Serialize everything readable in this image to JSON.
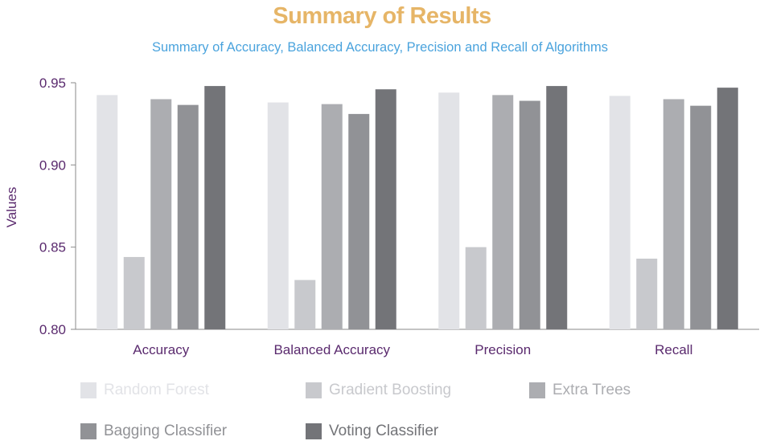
{
  "chart_data": {
    "type": "bar",
    "title": "Summary of Results",
    "subtitle": "Summary of Accuracy, Balanced Accuracy, Precision and Recall of Algorithms",
    "xlabel": "",
    "ylabel": "Values",
    "ylim": [
      0.8,
      0.95
    ],
    "yticks": [
      "0.80",
      "0.85",
      "0.90",
      "0.95"
    ],
    "grid": false,
    "legend_position": "bottom",
    "categories": [
      "Accuracy",
      "Balanced Accuracy",
      "Precision",
      "Recall"
    ],
    "series": [
      {
        "name": "Random Forest",
        "color": "#e2e3e7",
        "values": [
          0.9425,
          0.938,
          0.944,
          0.942
        ]
      },
      {
        "name": "Gradient Boosting",
        "color": "#c8c9cd",
        "values": [
          0.844,
          0.83,
          0.85,
          0.843
        ]
      },
      {
        "name": "Extra Trees",
        "color": "#acadb1",
        "values": [
          0.94,
          0.937,
          0.9425,
          0.94
        ]
      },
      {
        "name": "Bagging Classifier",
        "color": "#919296",
        "values": [
          0.9365,
          0.931,
          0.939,
          0.936
        ]
      },
      {
        "name": "Voting Classifier",
        "color": "#737478",
        "values": [
          0.948,
          0.946,
          0.948,
          0.947
        ]
      }
    ],
    "colors": {
      "title": "#e6b567",
      "subtitle": "#4aa3dd",
      "axis_text": "#5a2a6e",
      "axis_line": "#8a8a8a"
    }
  }
}
